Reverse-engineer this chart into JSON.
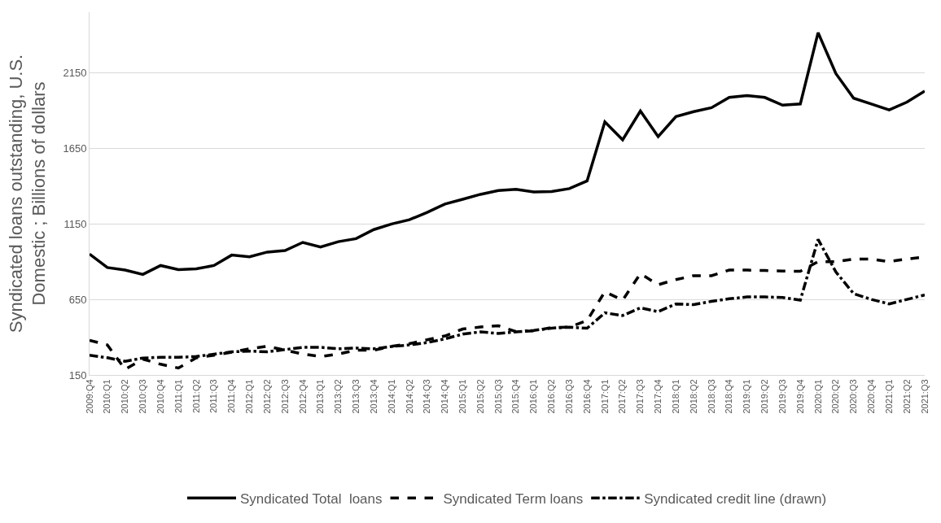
{
  "chart_data": {
    "type": "line",
    "ylabel": "Syndicated loans outstanding, U.S. Domestic ; Billions of dollars",
    "categories": [
      "2009:Q4",
      "2010:Q1",
      "2010:Q2",
      "2010:Q3",
      "2010:Q4",
      "2011:Q1",
      "2011:Q2",
      "2011:Q3",
      "2011:Q4",
      "2012:Q1",
      "2012:Q2",
      "2012:Q3",
      "2012:Q4",
      "2013:Q1",
      "2013:Q2",
      "2013:Q3",
      "2013:Q4",
      "2014:Q1",
      "2014:Q2",
      "2014:Q3",
      "2014:Q4",
      "2015:Q1",
      "2015:Q2",
      "2015:Q3",
      "2015:Q4",
      "2016:Q1",
      "2016:Q2",
      "2016:Q3",
      "2016:Q4",
      "2017:Q1",
      "2017:Q2",
      "2017:Q3",
      "2017:Q4",
      "2018:Q1",
      "2018:Q2",
      "2018:Q3",
      "2018:Q4",
      "2019:Q1",
      "2019:Q2",
      "2019:Q3",
      "2019:Q4",
      "2020:Q1",
      "2020:Q2",
      "2020:Q3",
      "2020:Q4",
      "2021:Q1",
      "2021:Q2",
      "2021:Q3"
    ],
    "series": [
      {
        "name": "Syndicated Total  loans",
        "color": "#000000",
        "line_style": "solid",
        "values": [
          950,
          861,
          844,
          815,
          874,
          847,
          852,
          874,
          943,
          932,
          963,
          973,
          1027,
          996,
          1032,
          1052,
          1112,
          1149,
          1177,
          1226,
          1281,
          1312,
          1345,
          1370,
          1378,
          1361,
          1363,
          1383,
          1434,
          1825,
          1706,
          1896,
          1727,
          1859,
          1892,
          1918,
          1986,
          1998,
          1986,
          1935,
          1943,
          2415,
          2144,
          1981,
          1943,
          1904,
          1955,
          2028
        ]
      },
      {
        "name": "Syndicated Term loans",
        "color": "#000000",
        "line_style": "dashed",
        "values": [
          379,
          349,
          187,
          255,
          221,
          196,
          263,
          281,
          301,
          323,
          340,
          314,
          289,
          272,
          289,
          314,
          314,
          340,
          357,
          383,
          408,
          454,
          467,
          476,
          437,
          442,
          464,
          467,
          510,
          701,
          645,
          820,
          747,
          781,
          807,
          807,
          844,
          844,
          841,
          838,
          836,
          900,
          900,
          917,
          917,
          900,
          917,
          930
        ]
      },
      {
        "name": "Syndicated credit line (drawn)",
        "color": "#000000",
        "line_style": "dashdot",
        "values": [
          281,
          264,
          240,
          262,
          267,
          267,
          272,
          287,
          303,
          308,
          303,
          318,
          333,
          333,
          323,
          328,
          323,
          338,
          349,
          364,
          389,
          420,
          435,
          425,
          435,
          445,
          460,
          466,
          459,
          561,
          543,
          594,
          569,
          620,
          615,
          637,
          654,
          666,
          666,
          663,
          645,
          1047,
          832,
          688,
          650,
          620,
          650,
          679
        ]
      }
    ],
    "ylim": [
      150,
      2550
    ],
    "yticks": [
      150,
      650,
      1150,
      1650,
      2150
    ],
    "grid": "y",
    "legend": "bottom"
  }
}
